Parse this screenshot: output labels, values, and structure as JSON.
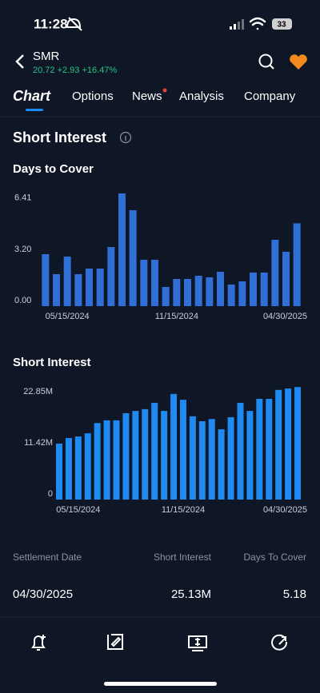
{
  "status_bar": {
    "time": "11:28",
    "battery": "33"
  },
  "header": {
    "symbol": "SMR",
    "quote": "20.72 +2.93 +16.47%"
  },
  "tabs": [
    "Chart",
    "Options",
    "News",
    "Analysis",
    "Company"
  ],
  "section_title": "Short Interest",
  "chart_data": [
    {
      "type": "bar",
      "title": "Days to Cover",
      "categories": [
        null,
        null,
        "05/15/2024",
        null,
        null,
        null,
        null,
        null,
        null,
        null,
        null,
        null,
        "11/15/2024",
        null,
        null,
        null,
        null,
        null,
        null,
        null,
        null,
        null,
        null,
        "04/30/2025"
      ],
      "values": [
        3.25,
        2.0,
        3.1,
        2.0,
        2.35,
        2.35,
        3.7,
        7.05,
        6.0,
        2.9,
        2.9,
        1.2,
        1.7,
        1.7,
        1.9,
        1.8,
        2.15,
        1.35,
        1.55,
        2.1,
        2.1,
        4.15,
        3.4,
        5.18
      ],
      "color": "#2f6fd6",
      "ylim": [
        0,
        7.1
      ],
      "yticks": [
        {
          "value": 0,
          "label": "0.00"
        },
        {
          "value": 3.2,
          "label": "3.20"
        },
        {
          "value": 6.41,
          "label": "6.41"
        }
      ]
    },
    {
      "type": "bar",
      "title": "Short Interest",
      "categories": [
        null,
        null,
        "05/15/2024",
        null,
        null,
        null,
        null,
        null,
        null,
        null,
        null,
        null,
        null,
        "11/15/2024",
        null,
        null,
        null,
        null,
        null,
        null,
        null,
        null,
        null,
        null,
        null,
        "04/30/2025"
      ],
      "values": [
        12.5,
        13.75,
        14.1,
        14.8,
        17.1,
        17.7,
        17.7,
        19.3,
        19.8,
        20.2,
        21.6,
        19.8,
        23.6,
        22.3,
        18.6,
        17.5,
        18.0,
        15.7,
        18.4,
        21.6,
        19.8,
        22.5,
        22.5,
        24.5,
        24.8,
        25.13
      ],
      "color": "#1e8af2",
      "ylim": [
        0,
        25.5
      ],
      "yticks": [
        0,
        {
          "value": 11.42,
          "label": "11.42M"
        },
        {
          "value": 22.85,
          "label": "22.85M"
        }
      ]
    }
  ],
  "table": {
    "headers": [
      "Settlement Date",
      "Short Interest",
      "Days To Cover"
    ],
    "rows": [
      [
        "04/30/2025",
        "25.13M",
        "5.18"
      ]
    ]
  }
}
